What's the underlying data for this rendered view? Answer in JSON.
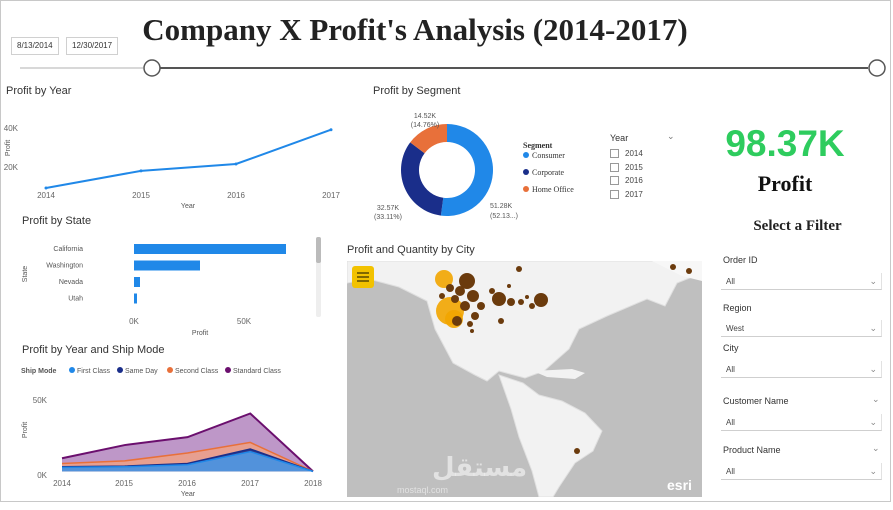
{
  "title": "Company X Profit's Analysis (2014-2017)",
  "date_slicer": {
    "start": "8/13/2014",
    "end": "12/30/2017"
  },
  "profit_by_year": {
    "title": "Profit by Year",
    "ylabel": "Profit",
    "xlabel": "Year",
    "y_ticks": [
      "40K",
      "20K"
    ],
    "x_ticks": [
      "2014",
      "2015",
      "2016",
      "2017"
    ]
  },
  "profit_by_segment": {
    "title": "Profit by Segment",
    "legend_title": "Segment",
    "labels": [
      {
        "value": "14.52K",
        "pct": "(14.76%)"
      },
      {
        "value": "32.57K",
        "pct": "(33.11%)"
      },
      {
        "value": "51.28K",
        "pct": "(52.13...)"
      }
    ]
  },
  "year_slicer": {
    "title": "Year",
    "items": [
      "2014",
      "2015",
      "2016",
      "2017"
    ]
  },
  "kpi": {
    "value": "98.37K",
    "label": "Profit",
    "filter_heading": "Select a Filter"
  },
  "profit_by_state": {
    "title": "Profit by State",
    "ylabel": "State",
    "xlabel": "Profit",
    "x_ticks": [
      "0K",
      "50K"
    ]
  },
  "map": {
    "title": "Profit and Quantity by City",
    "logo": "esri",
    "watermark": "مستقل",
    "watermark_sub": "mostaql.com"
  },
  "profit_by_ship": {
    "title": "Profit by Year and Ship Mode",
    "legend_title": "Ship Mode",
    "ylabel": "Profit",
    "xlabel": "Year",
    "y_ticks": [
      "50K",
      "0K"
    ],
    "x_ticks": [
      "2014",
      "2015",
      "2016",
      "2017",
      "2018"
    ]
  },
  "filters": [
    {
      "label": "Order ID",
      "value": "All"
    },
    {
      "label": "Region",
      "value": "West"
    },
    {
      "label": "City",
      "value": "All"
    },
    {
      "label": "Customer Name",
      "value": "All"
    },
    {
      "label": "Product Name",
      "value": "All"
    }
  ],
  "colors": {
    "primary": "#2088e8",
    "navy": "#1a2e8a",
    "orange": "#e8703a",
    "purple": "#6b0f6e",
    "kpi_green": "#2ecc5e"
  },
  "chart_data": [
    {
      "type": "line",
      "title": "Profit by Year",
      "x": [
        2014,
        2015,
        2016,
        2017
      ],
      "values": [
        10000,
        20000,
        24000,
        44000
      ],
      "ylabel": "Profit",
      "xlabel": "Year",
      "ylim": [
        10000,
        45000
      ]
    },
    {
      "type": "pie",
      "title": "Profit by Segment",
      "categories": [
        "Consumer",
        "Corporate",
        "Home Office"
      ],
      "values": [
        51280,
        32570,
        14520
      ]
    },
    {
      "type": "bar",
      "title": "Profit by State",
      "categories": [
        "California",
        "Washington",
        "Nevada",
        "Utah"
      ],
      "values": [
        76000,
        33000,
        3000,
        1500
      ],
      "xlim": [
        0,
        80000
      ]
    },
    {
      "type": "area",
      "title": "Profit by Year and Ship Mode",
      "x": [
        2014,
        2015,
        2016,
        2017,
        2018
      ],
      "series": [
        {
          "name": "First Class",
          "values": [
            3000,
            3500,
            5000,
            15000,
            0
          ]
        },
        {
          "name": "Same Day",
          "values": [
            3500,
            4000,
            6000,
            17000,
            0
          ]
        },
        {
          "name": "Second Class",
          "values": [
            6000,
            8000,
            14000,
            22000,
            0
          ]
        },
        {
          "name": "Standard Class",
          "values": [
            10000,
            20000,
            26000,
            44000,
            0
          ]
        }
      ],
      "ylabel": "Profit",
      "xlabel": "Year",
      "ylim": [
        -2000,
        55000
      ]
    }
  ]
}
